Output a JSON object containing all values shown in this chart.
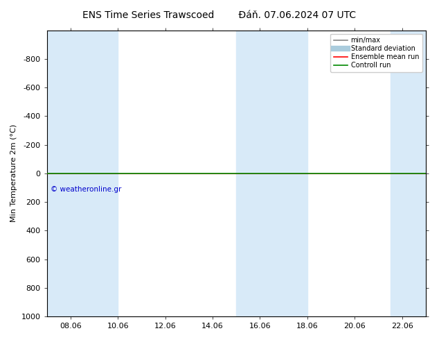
{
  "title_left": "ENS Time Series Trawscoed",
  "title_right": "Đáň. 07.06.2024 07 UTC",
  "ylabel": "Min Temperature 2m (°C)",
  "ylim_top": -1000,
  "ylim_bottom": 1000,
  "yticks": [
    -800,
    -600,
    -400,
    -200,
    0,
    200,
    400,
    600,
    800,
    1000
  ],
  "xtick_labels": [
    "08.06",
    "10.06",
    "12.06",
    "14.06",
    "16.06",
    "18.06",
    "20.06",
    "22.06"
  ],
  "xtick_positions": [
    1,
    3,
    5,
    7,
    9,
    11,
    13,
    15
  ],
  "x_min": 0,
  "x_max": 16,
  "shaded_bands": [
    [
      0,
      1.5
    ],
    [
      1.5,
      3.0
    ],
    [
      8.0,
      9.5
    ],
    [
      9.5,
      11.0
    ],
    [
      14.5,
      16.0
    ]
  ],
  "shaded_band_color": "#d8eaf8",
  "line_y": 0,
  "green_line_color": "#008800",
  "red_line_color": "#ff0000",
  "gray_line_color": "#888888",
  "cyan_line_color": "#aacccc",
  "background_color": "#ffffff",
  "plot_bg_color": "#ffffff",
  "watermark": "© weatheronline.gr",
  "watermark_color": "#0000cc",
  "title_fontsize": 10,
  "axis_fontsize": 8,
  "tick_fontsize": 8,
  "legend_labels": [
    "min/max",
    "Standard deviation",
    "Ensemble mean run",
    "Controll run"
  ],
  "legend_colors": [
    "#888888",
    "#aaccdd",
    "#ff0000",
    "#008800"
  ]
}
